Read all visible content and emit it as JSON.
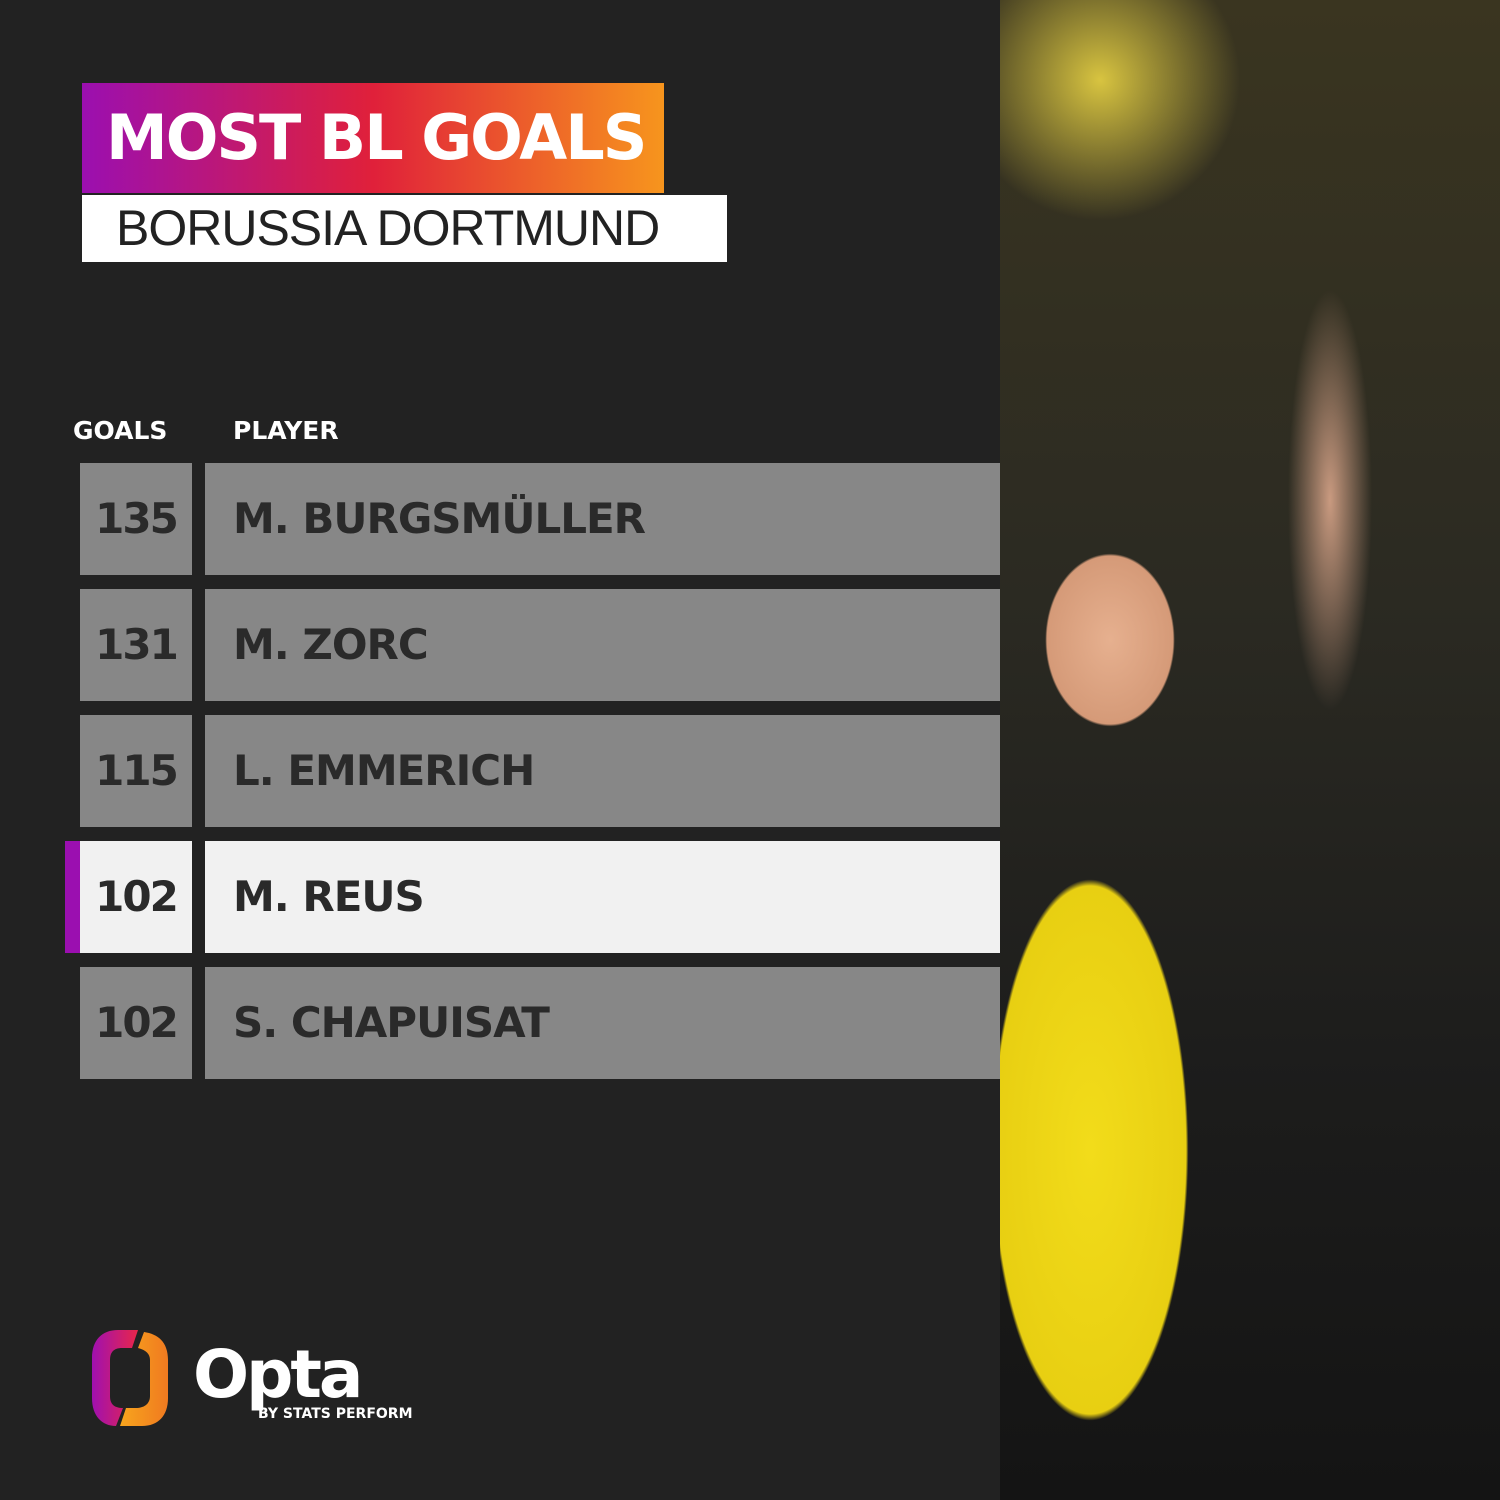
{
  "header": {
    "title": "MOST BL GOALS",
    "subtitle": "BORUSSIA DORTMUND"
  },
  "table": {
    "columns": [
      "GOALS",
      "PLAYER"
    ]
  },
  "chart_data": {
    "type": "table",
    "columns": [
      "GOALS",
      "PLAYER"
    ],
    "rows": [
      {
        "goals": "135",
        "player": "M. BURGSMÜLLER",
        "highlighted": false
      },
      {
        "goals": "131",
        "player": "M. ZORC",
        "highlighted": false
      },
      {
        "goals": "115",
        "player": "L. EMMERICH",
        "highlighted": false
      },
      {
        "goals": "102",
        "player": "M. REUS",
        "highlighted": true
      },
      {
        "goals": "102",
        "player": "S. CHAPUISAT",
        "highlighted": false
      }
    ]
  },
  "colors": {
    "background": "#222222",
    "row": "#878787",
    "highlight_row": "#f1f1f1",
    "accent": "#9b0fb0",
    "gradient": [
      "#9b0fb0",
      "#e0203a",
      "#f7951d"
    ]
  },
  "brand": {
    "name": "Opta",
    "tagline": "BY STATS PERFORM"
  }
}
